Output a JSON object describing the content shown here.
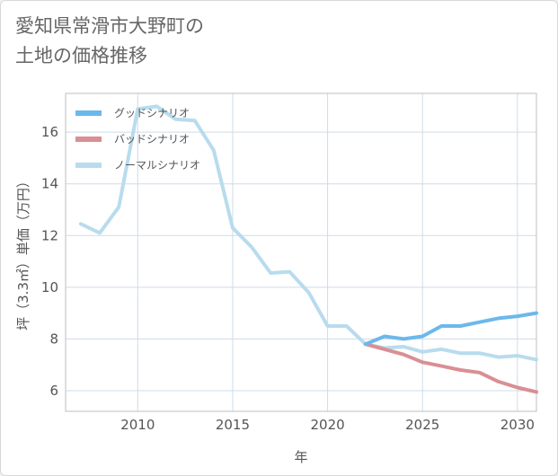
{
  "page": {
    "title_line1": "愛知県常滑市大野町の",
    "title_line2": "土地の価格推移"
  },
  "chart_data": {
    "type": "line",
    "xlabel": "年",
    "ylabel": "坪（3.3㎡）単価（万円）",
    "xlim": [
      2006.2,
      2031.0
    ],
    "ylim": [
      5.2,
      17.5
    ],
    "x_ticks": [
      2010,
      2015,
      2020,
      2025,
      2030
    ],
    "y_ticks": [
      6,
      8,
      10,
      12,
      14,
      16
    ],
    "grid": true,
    "legend_position": "top-left",
    "series": [
      {
        "name": "グッドシナリオ",
        "color": "#6cb8ec",
        "x": [
          2022,
          2023,
          2024,
          2025,
          2026,
          2027,
          2028,
          2029,
          2030,
          2031
        ],
        "y": [
          7.8,
          8.1,
          8.0,
          8.1,
          8.5,
          8.5,
          8.65,
          8.8,
          8.88,
          9.0
        ]
      },
      {
        "name": "バッドシナリオ",
        "color": "#d98f94",
        "x": [
          2022,
          2023,
          2024,
          2025,
          2026,
          2027,
          2028,
          2029,
          2030,
          2031
        ],
        "y": [
          7.8,
          7.6,
          7.4,
          7.1,
          6.95,
          6.8,
          6.7,
          6.35,
          6.12,
          5.95
        ]
      },
      {
        "name": "ノーマルシナリオ",
        "color": "#b8dcee",
        "x": [
          2007,
          2008,
          2009,
          2010,
          2011,
          2012,
          2013,
          2014,
          2015,
          2016,
          2017,
          2018,
          2019,
          2020,
          2021,
          2022,
          2023,
          2024,
          2025,
          2026,
          2027,
          2028,
          2029,
          2030,
          2031
        ],
        "y": [
          12.45,
          12.1,
          13.1,
          16.9,
          17.0,
          16.5,
          16.45,
          15.3,
          12.3,
          11.55,
          10.55,
          10.6,
          9.8,
          8.5,
          8.5,
          7.8,
          7.65,
          7.7,
          7.5,
          7.6,
          7.45,
          7.45,
          7.3,
          7.35,
          7.2
        ]
      }
    ]
  }
}
